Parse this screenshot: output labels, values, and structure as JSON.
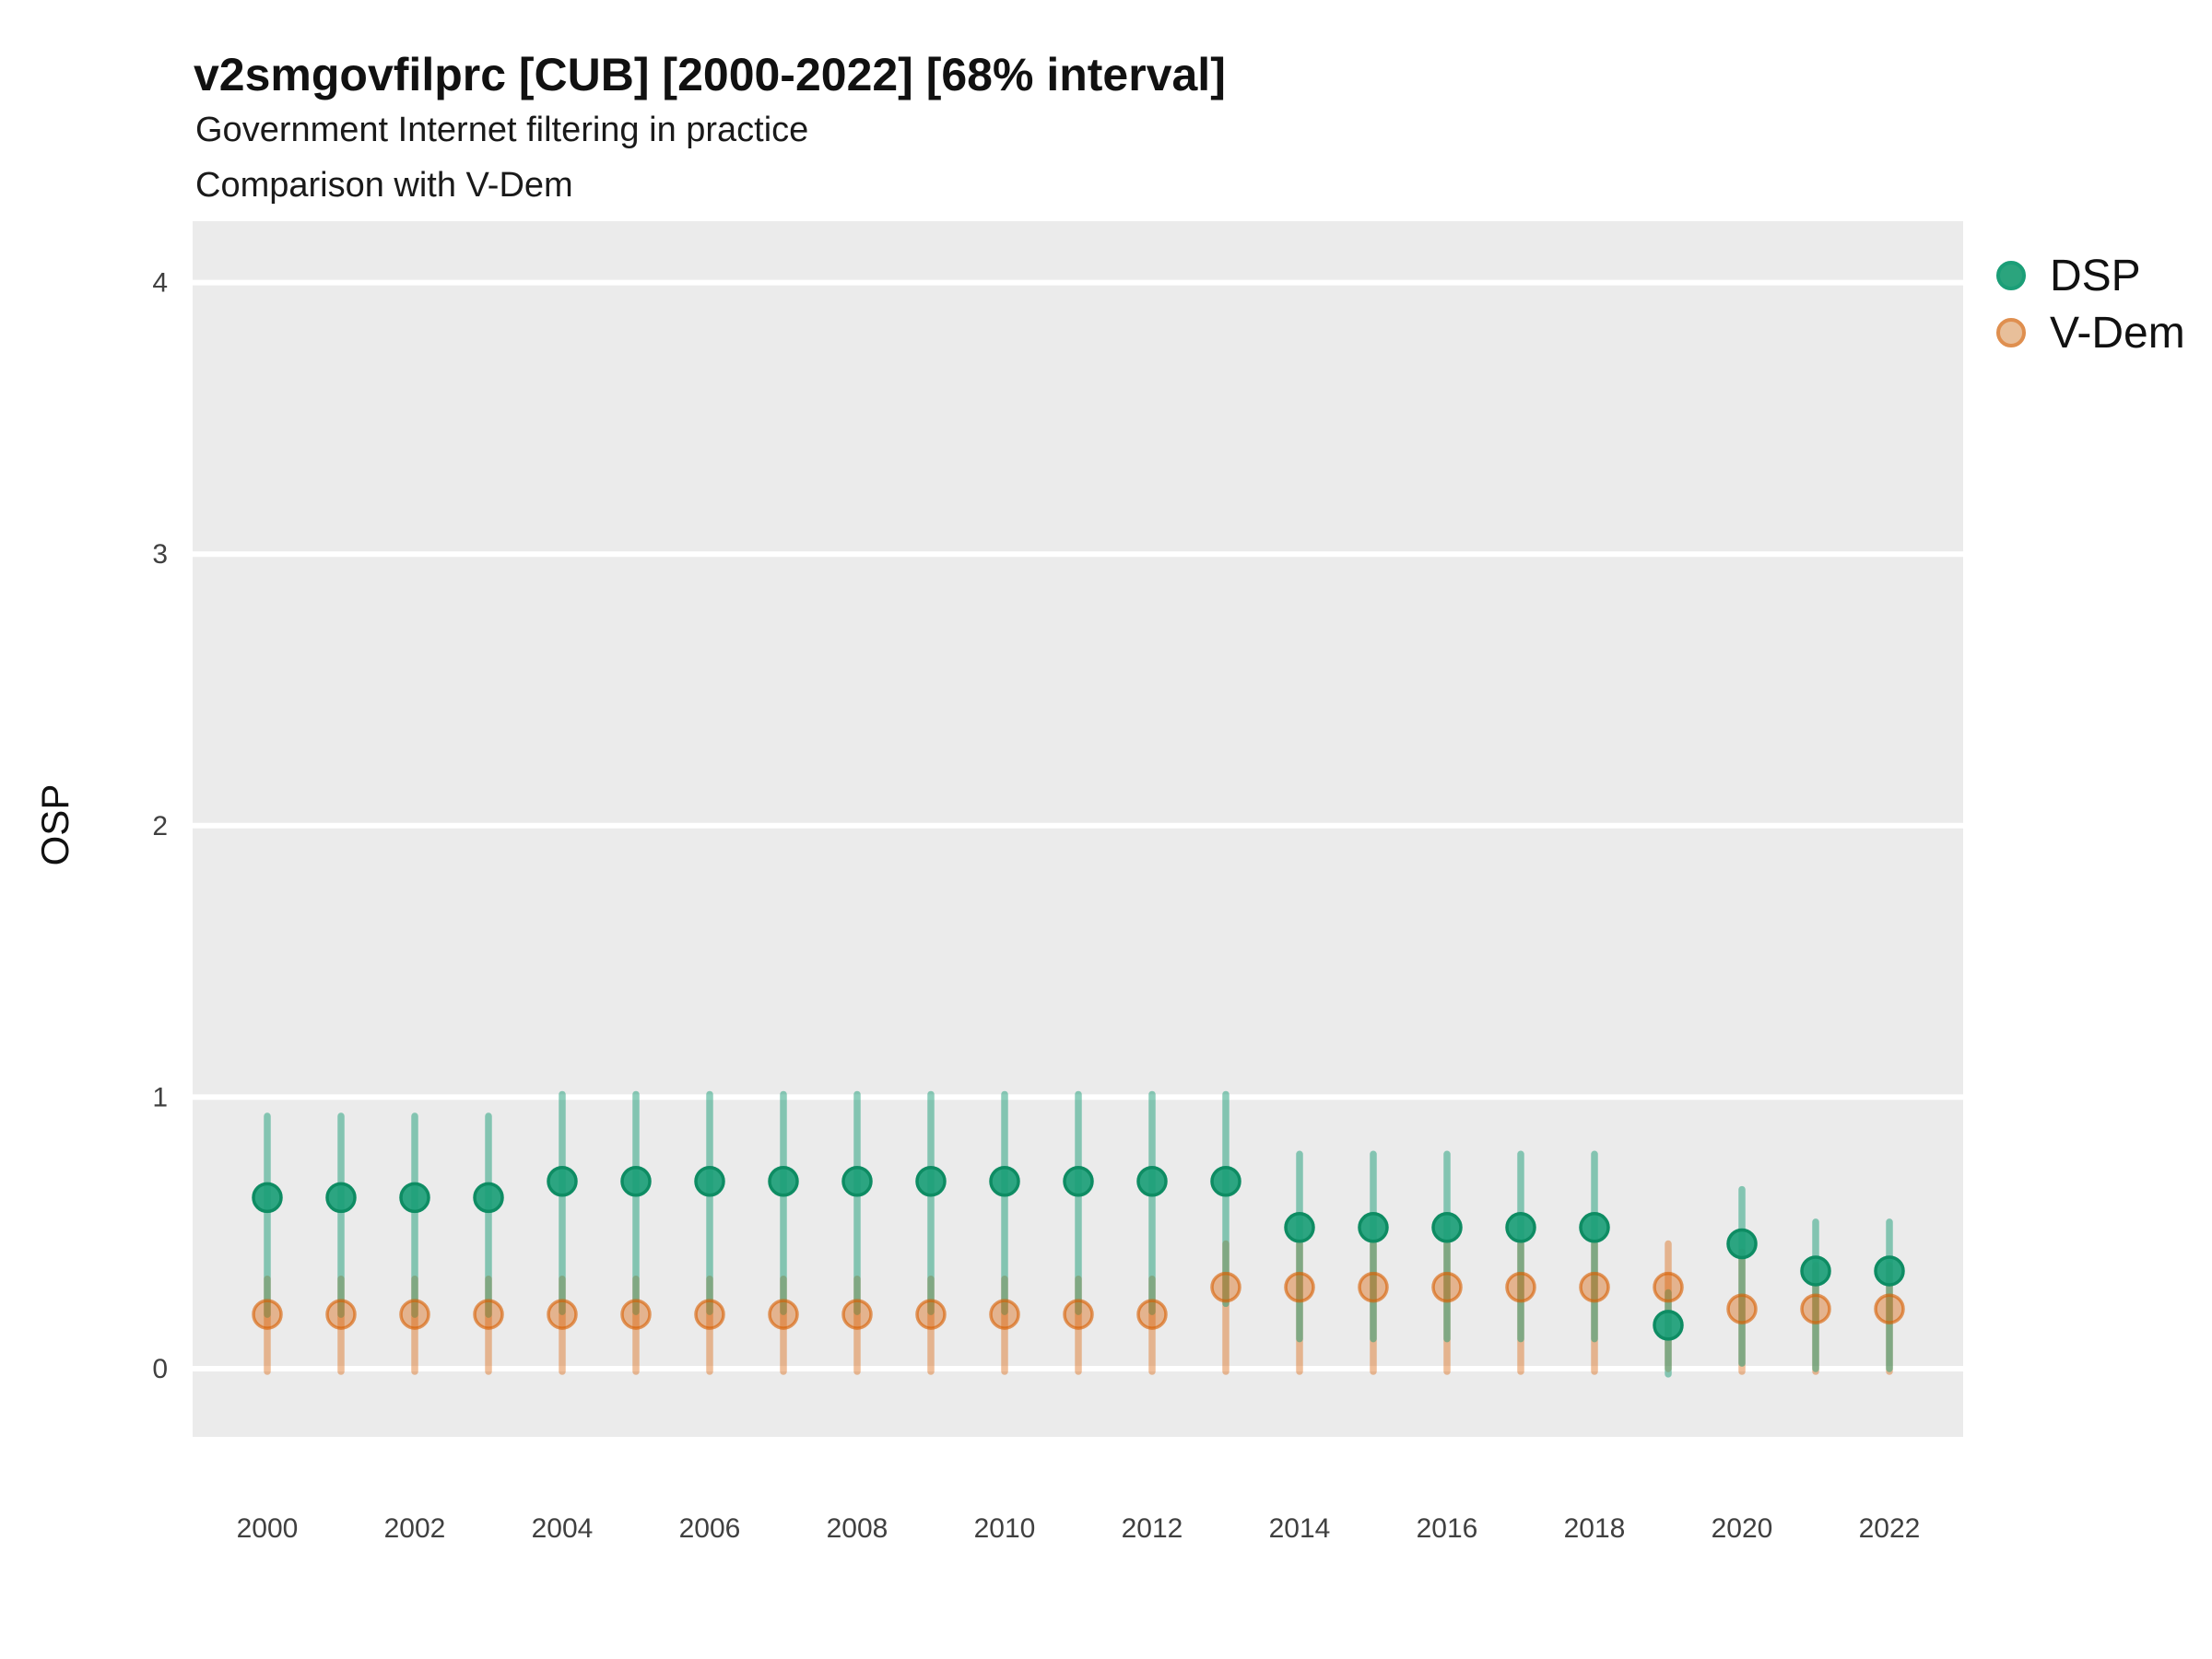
{
  "chart_data": {
    "type": "pointrange-scatter",
    "title": "v2smgovfilprc [CUB] [2000-2022] [68% interval]",
    "subtitle": "Government Internet filtering in practice",
    "subtitle2": "Comparison with V-Dem",
    "ylabel": "OSP",
    "interval_level": "68%",
    "country_code": "CUB",
    "x_ticks": [
      2000,
      2002,
      2004,
      2006,
      2008,
      2010,
      2012,
      2014,
      2016,
      2018,
      2020,
      2022
    ],
    "y_ticks": [
      0,
      1,
      2,
      3,
      4
    ],
    "xlim": [
      1999,
      2023
    ],
    "ylim": [
      -0.25,
      4.23
    ],
    "grid": "major-horizontal-only",
    "legend_position": "top-right",
    "colors": {
      "dsp": "#1B9E77",
      "dsp_point_stroke": "#0E8C63",
      "vdem": "#D95F02",
      "panel_bg": "#EBEBEB",
      "gridline": "#FFFFFF",
      "tick_text": "#404040"
    },
    "series": [
      {
        "name": "DSP",
        "points": [
          {
            "year": 2000,
            "value": 0.63,
            "lo": 0.2,
            "hi": 0.93
          },
          {
            "year": 2001,
            "value": 0.63,
            "lo": 0.2,
            "hi": 0.93
          },
          {
            "year": 2002,
            "value": 0.63,
            "lo": 0.2,
            "hi": 0.93
          },
          {
            "year": 2003,
            "value": 0.63,
            "lo": 0.2,
            "hi": 0.93
          },
          {
            "year": 2004,
            "value": 0.69,
            "lo": 0.21,
            "hi": 1.01
          },
          {
            "year": 2005,
            "value": 0.69,
            "lo": 0.21,
            "hi": 1.01
          },
          {
            "year": 2006,
            "value": 0.69,
            "lo": 0.21,
            "hi": 1.01
          },
          {
            "year": 2007,
            "value": 0.69,
            "lo": 0.21,
            "hi": 1.01
          },
          {
            "year": 2008,
            "value": 0.69,
            "lo": 0.21,
            "hi": 1.01
          },
          {
            "year": 2009,
            "value": 0.69,
            "lo": 0.21,
            "hi": 1.01
          },
          {
            "year": 2010,
            "value": 0.69,
            "lo": 0.21,
            "hi": 1.01
          },
          {
            "year": 2011,
            "value": 0.69,
            "lo": 0.21,
            "hi": 1.01
          },
          {
            "year": 2012,
            "value": 0.69,
            "lo": 0.21,
            "hi": 1.01
          },
          {
            "year": 2013,
            "value": 0.69,
            "lo": 0.24,
            "hi": 1.01
          },
          {
            "year": 2014,
            "value": 0.52,
            "lo": 0.11,
            "hi": 0.79
          },
          {
            "year": 2015,
            "value": 0.52,
            "lo": 0.11,
            "hi": 0.79
          },
          {
            "year": 2016,
            "value": 0.52,
            "lo": 0.11,
            "hi": 0.79
          },
          {
            "year": 2017,
            "value": 0.52,
            "lo": 0.11,
            "hi": 0.79
          },
          {
            "year": 2018,
            "value": 0.52,
            "lo": 0.11,
            "hi": 0.79
          },
          {
            "year": 2019,
            "value": 0.16,
            "lo": -0.02,
            "hi": 0.28
          },
          {
            "year": 2020,
            "value": 0.46,
            "lo": 0.02,
            "hi": 0.66
          },
          {
            "year": 2021,
            "value": 0.36,
            "lo": 0.0,
            "hi": 0.54
          },
          {
            "year": 2022,
            "value": 0.36,
            "lo": 0.0,
            "hi": 0.54
          }
        ]
      },
      {
        "name": "V-Dem",
        "points": [
          {
            "year": 2000,
            "value": 0.2,
            "lo": -0.01,
            "hi": 0.33
          },
          {
            "year": 2001,
            "value": 0.2,
            "lo": -0.01,
            "hi": 0.33
          },
          {
            "year": 2002,
            "value": 0.2,
            "lo": -0.01,
            "hi": 0.33
          },
          {
            "year": 2003,
            "value": 0.2,
            "lo": -0.01,
            "hi": 0.33
          },
          {
            "year": 2004,
            "value": 0.2,
            "lo": -0.01,
            "hi": 0.33
          },
          {
            "year": 2005,
            "value": 0.2,
            "lo": -0.01,
            "hi": 0.33
          },
          {
            "year": 2006,
            "value": 0.2,
            "lo": -0.01,
            "hi": 0.33
          },
          {
            "year": 2007,
            "value": 0.2,
            "lo": -0.01,
            "hi": 0.33
          },
          {
            "year": 2008,
            "value": 0.2,
            "lo": -0.01,
            "hi": 0.33
          },
          {
            "year": 2009,
            "value": 0.2,
            "lo": -0.01,
            "hi": 0.33
          },
          {
            "year": 2010,
            "value": 0.2,
            "lo": -0.01,
            "hi": 0.33
          },
          {
            "year": 2011,
            "value": 0.2,
            "lo": -0.01,
            "hi": 0.33
          },
          {
            "year": 2012,
            "value": 0.2,
            "lo": -0.01,
            "hi": 0.33
          },
          {
            "year": 2013,
            "value": 0.3,
            "lo": -0.01,
            "hi": 0.46
          },
          {
            "year": 2014,
            "value": 0.3,
            "lo": -0.01,
            "hi": 0.46
          },
          {
            "year": 2015,
            "value": 0.3,
            "lo": -0.01,
            "hi": 0.46
          },
          {
            "year": 2016,
            "value": 0.3,
            "lo": -0.01,
            "hi": 0.46
          },
          {
            "year": 2017,
            "value": 0.3,
            "lo": -0.01,
            "hi": 0.46
          },
          {
            "year": 2018,
            "value": 0.3,
            "lo": -0.01,
            "hi": 0.46
          },
          {
            "year": 2019,
            "value": 0.3,
            "lo": 0.0,
            "hi": 0.46
          },
          {
            "year": 2020,
            "value": 0.22,
            "lo": -0.01,
            "hi": 0.43
          },
          {
            "year": 2021,
            "value": 0.22,
            "lo": -0.01,
            "hi": 0.38
          },
          {
            "year": 2022,
            "value": 0.22,
            "lo": -0.01,
            "hi": 0.38
          }
        ]
      }
    ]
  }
}
